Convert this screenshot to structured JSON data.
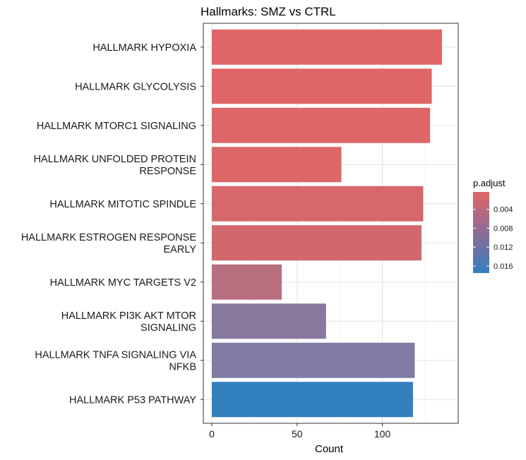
{
  "chart_data": {
    "type": "bar",
    "orientation": "horizontal",
    "title": "Hallmarks: SMZ vs CTRL",
    "xlabel": "Count",
    "ylabel": "",
    "xlim": [
      0,
      143
    ],
    "xticks": [
      0,
      50,
      100
    ],
    "grid": true,
    "categories": [
      "HALLMARK HYPOXIA",
      "HALLMARK GLYCOLYSIS",
      "HALLMARK MTORC1 SIGNALING",
      "HALLMARK UNFOLDED PROTEIN RESPONSE",
      "HALLMARK MITOTIC SPINDLE",
      "HALLMARK ESTROGEN RESPONSE EARLY",
      "HALLMARK MYC TARGETS V2",
      "HALLMARK PI3K AKT MTOR SIGNALING",
      "HALLMARK TNFA SIGNALING VIA NFKB",
      "HALLMARK P53 PATHWAY"
    ],
    "label_lines": [
      [
        "HALLMARK HYPOXIA"
      ],
      [
        "HALLMARK GLYCOLYSIS"
      ],
      [
        "HALLMARK MTORC1 SIGNALING"
      ],
      [
        "HALLMARK UNFOLDED PROTEIN",
        "RESPONSE"
      ],
      [
        "HALLMARK MITOTIC SPINDLE"
      ],
      [
        "HALLMARK ESTROGEN RESPONSE",
        "EARLY"
      ],
      [
        "HALLMARK MYC TARGETS V2"
      ],
      [
        "HALLMARK PI3K AKT MTOR",
        "SIGNALING"
      ],
      [
        "HALLMARK TNFA SIGNALING VIA",
        "NFKB"
      ],
      [
        "HALLMARK P53 PATHWAY"
      ]
    ],
    "values": [
      135,
      129,
      128,
      76,
      124,
      123,
      41,
      67,
      119,
      118
    ],
    "p_adjust": [
      0.0005,
      0.0006,
      0.0007,
      0.0012,
      0.0018,
      0.0025,
      0.0062,
      0.0105,
      0.011,
      0.0165
    ],
    "colors": [
      "#e06666",
      "#e06666",
      "#df6667",
      "#dc6668",
      "#d7676a",
      "#d1686e",
      "#b86f80",
      "#877a9e",
      "#827ba3",
      "#3380be"
    ],
    "legend": {
      "title": "p.adjust",
      "position": "right",
      "ticks": [
        "0.004",
        "0.008",
        "0.012",
        "0.016"
      ],
      "tick_values": [
        0.004,
        0.008,
        0.012,
        0.016
      ],
      "range": [
        0.0003,
        0.0175
      ],
      "color_low": "#e06666",
      "color_mid": "#8d6b97",
      "color_high": "#3380be"
    }
  }
}
